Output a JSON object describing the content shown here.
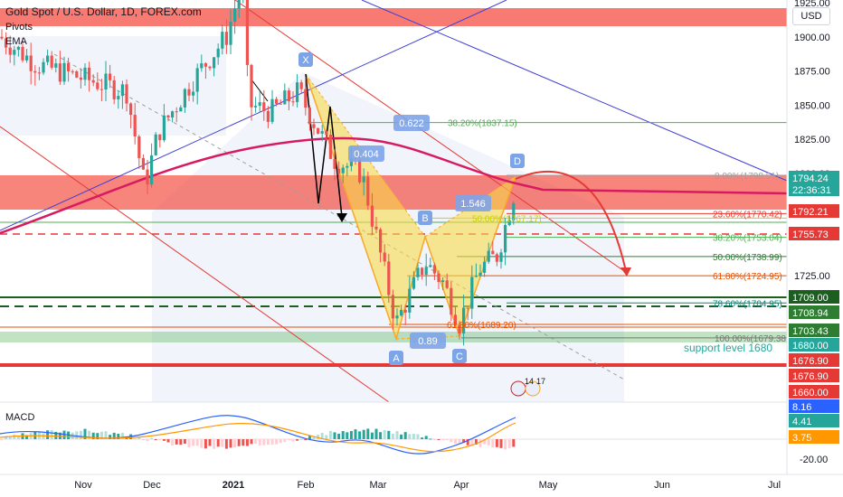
{
  "header": {
    "symbol": "Gold Spot / U.S. Dollar, 1D, FOREX.com",
    "indicators": [
      "Pivots",
      "EMA"
    ]
  },
  "currency": "USD",
  "colors": {
    "up": "#26a69a",
    "down": "#ef5350",
    "ema": "#d81b60",
    "resistance_zone": "#f44336",
    "pattern": "#f9d84a",
    "fib_green": "#4caf50",
    "fib_orange": "#e65100",
    "channel": "#e53935",
    "trend_blue": "#3f3fd4"
  },
  "chart_data": {
    "type": "candlestick",
    "x": [
      "Nov",
      "Dec",
      "2021",
      "Feb",
      "Mar",
      "Apr",
      "May",
      "Jun",
      "Jul"
    ],
    "ylim": [
      -20,
      1935
    ],
    "price_ticks": [
      1925,
      1900,
      1875,
      1850,
      1825,
      1800,
      1725
    ],
    "macd_ticks": [
      -20
    ],
    "price_tags": [
      {
        "text": "1794.24",
        "sub": "22:36:31",
        "color": "#26a69a"
      },
      {
        "text": "1792.21",
        "color": "#e53935"
      },
      {
        "text": "1755.73",
        "color": "#e53935"
      },
      {
        "text": "1709.00",
        "color": "#1b5e20"
      },
      {
        "text": "1708.94",
        "color": "#2e7d32"
      },
      {
        "text": "1703.43",
        "color": "#2e7d32"
      },
      {
        "text": "1680.00",
        "color": "#26a69a"
      },
      {
        "text": "1676.90",
        "color": "#e53935"
      },
      {
        "text": "1676.90",
        "color": "#e53935"
      },
      {
        "text": "1660.00",
        "color": "#e53935"
      },
      {
        "text": "8.16",
        "color": "#2962ff"
      },
      {
        "text": "4.41",
        "color": "#26a69a"
      },
      {
        "text": "3.75",
        "color": "#ff9800"
      }
    ],
    "pattern_points": [
      {
        "label": "X",
        "price": 1875
      },
      {
        "label": "A",
        "price": 1680
      },
      {
        "label": "B",
        "price": 1760
      },
      {
        "label": "C",
        "price": 1682
      },
      {
        "label": "D",
        "price": 1798
      }
    ],
    "ratios": [
      "0.622",
      "0.404",
      "1.546",
      "0.89"
    ],
    "fib_levels": [
      {
        "text": "38.20%(1837.15)",
        "price": 1837.15,
        "color": "#4caf50"
      },
      {
        "text": "0.00%(1798.51)",
        "price": 1798.51,
        "color": "#9e9e9e"
      },
      {
        "text": "23.60%(1770.42)",
        "price": 1770.42,
        "color": "#e53935"
      },
      {
        "text": "50.00%(1767.17)",
        "price": 1767.17,
        "color": "#c6d300"
      },
      {
        "text": "38.20%(1753.04)",
        "price": 1753.04,
        "color": "#4caf50"
      },
      {
        "text": "50.00%(1738.99)",
        "price": 1738.99,
        "color": "#2e7d32"
      },
      {
        "text": "61.80%(1724.95)",
        "price": 1724.95,
        "color": "#e65100"
      },
      {
        "text": "78.60%(1704.95)",
        "price": 1704.95,
        "color": "#00897b"
      },
      {
        "text": "61.80%(1689.20)",
        "price": 1689.2,
        "color": "#e65100"
      },
      {
        "text": "100.00%(1679.38)",
        "price": 1679.38,
        "color": "#757575"
      }
    ],
    "annotations": [
      "support level 1680"
    ],
    "event_labels": [
      "14",
      "17"
    ],
    "sub_panel": {
      "name": "MACD"
    }
  }
}
